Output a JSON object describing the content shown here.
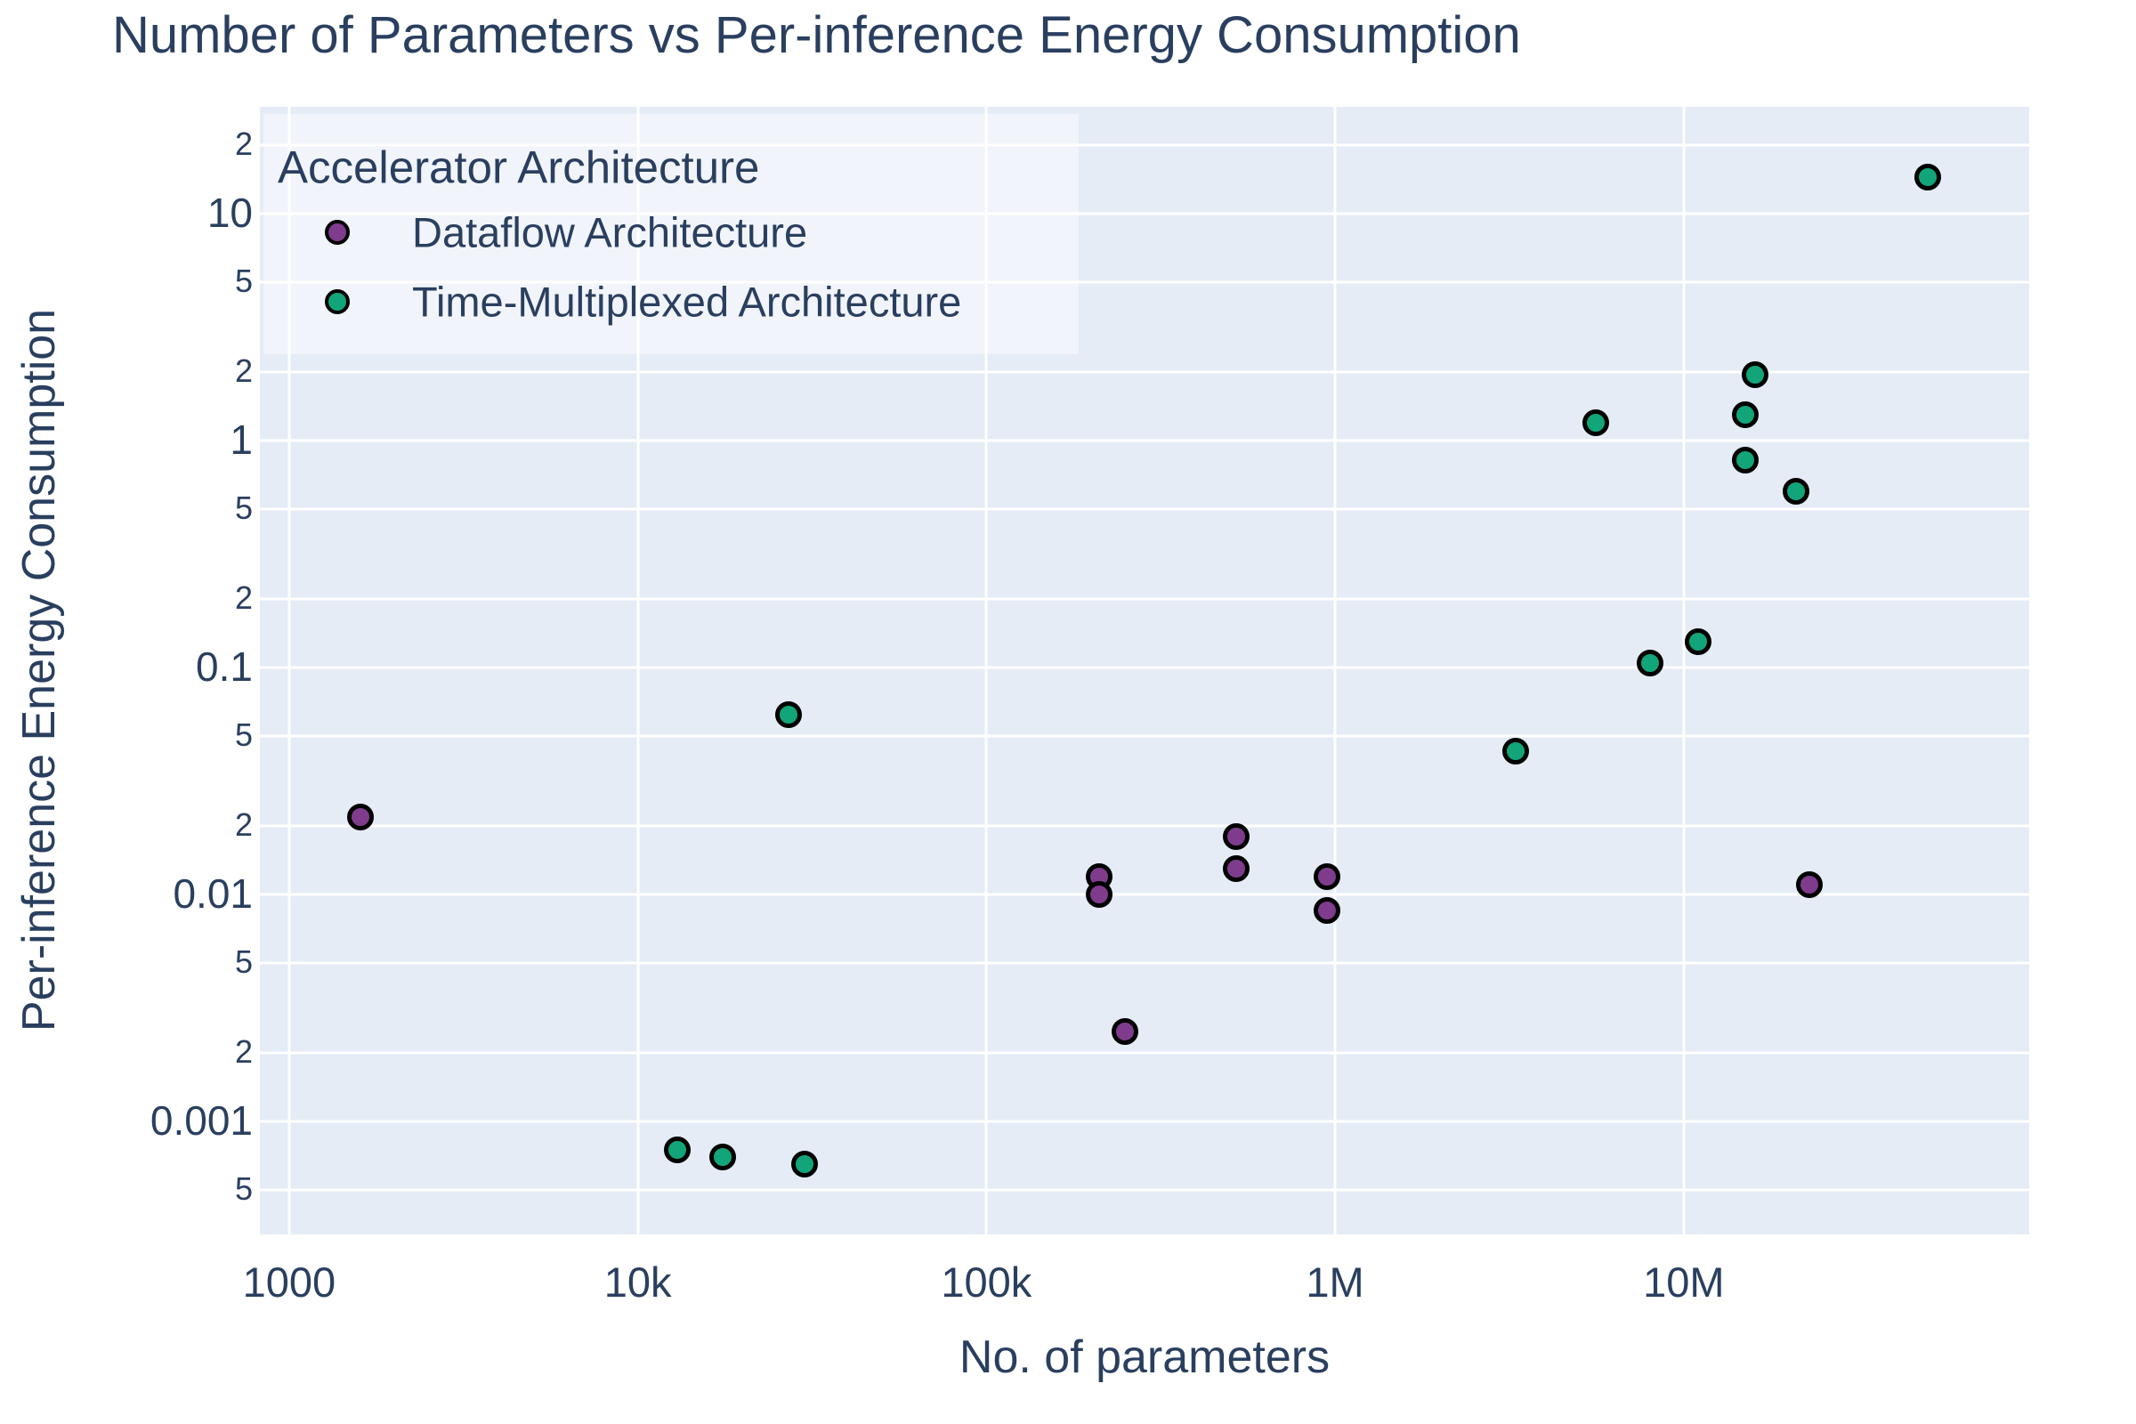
{
  "colors": {
    "background": "#ffffff",
    "plot_background": "#e5ecf6",
    "gridline": "#ffffff",
    "text": "#2a3f5f",
    "marker_outline": "#000000",
    "dataflow": "#7F3C8D",
    "time_multiplexed": "#11A579"
  },
  "chart_data": {
    "type": "scatter",
    "title": "Number of Parameters vs Per-inference Energy Consumption",
    "xlabel": "No. of parameters",
    "ylabel": "Per-inference Energy Consumption",
    "x_scale": "log",
    "y_scale": "log",
    "x_range_log10": [
      2.916,
      7.991
    ],
    "y_range_log10": [
      -3.498,
      1.471
    ],
    "grid": true,
    "legend": {
      "title": "Accelerator Architecture",
      "position": "top-left"
    },
    "x_ticks": [
      {
        "value": 1000,
        "label": "1000"
      },
      {
        "value": 10000,
        "label": "10k"
      },
      {
        "value": 100000,
        "label": "100k"
      },
      {
        "value": 1000000,
        "label": "1M"
      },
      {
        "value": 10000000,
        "label": "10M"
      }
    ],
    "y_ticks": [
      {
        "value": 20,
        "label": "2",
        "minor": true
      },
      {
        "value": 10,
        "label": "10",
        "minor": false
      },
      {
        "value": 5,
        "label": "5",
        "minor": true
      },
      {
        "value": 2,
        "label": "2",
        "minor": true
      },
      {
        "value": 1,
        "label": "1",
        "minor": false
      },
      {
        "value": 0.5,
        "label": "5",
        "minor": true
      },
      {
        "value": 0.2,
        "label": "2",
        "minor": true
      },
      {
        "value": 0.1,
        "label": "0.1",
        "minor": false
      },
      {
        "value": 0.05,
        "label": "5",
        "minor": true
      },
      {
        "value": 0.02,
        "label": "2",
        "minor": true
      },
      {
        "value": 0.01,
        "label": "0.01",
        "minor": false
      },
      {
        "value": 0.005,
        "label": "5",
        "minor": true
      },
      {
        "value": 0.002,
        "label": "2",
        "minor": true
      },
      {
        "value": 0.001,
        "label": "0.001",
        "minor": false
      },
      {
        "value": 0.0005,
        "label": "5",
        "minor": true
      }
    ],
    "series": [
      {
        "name": "Dataflow Architecture",
        "color": "#7F3C8D",
        "points": [
          [
            1600,
            0.022
          ],
          [
            210000,
            0.012
          ],
          [
            210000,
            0.01
          ],
          [
            250000,
            0.0025
          ],
          [
            520000,
            0.018
          ],
          [
            520000,
            0.013
          ],
          [
            950000,
            0.012
          ],
          [
            950000,
            0.0085
          ],
          [
            23000000,
            0.011
          ]
        ]
      },
      {
        "name": "Time-Multiplexed Architecture",
        "color": "#11A579",
        "points": [
          [
            13000,
            0.00075
          ],
          [
            17500,
            0.0007
          ],
          [
            30000,
            0.00065
          ],
          [
            27000,
            0.062
          ],
          [
            3300000,
            0.043
          ],
          [
            8000000,
            0.105
          ],
          [
            11000000,
            0.13
          ],
          [
            5600000,
            1.2
          ],
          [
            15000000,
            1.3
          ],
          [
            15000000,
            0.82
          ],
          [
            16000000,
            1.95
          ],
          [
            21000000,
            0.6
          ],
          [
            50000000,
            14.5
          ]
        ]
      }
    ]
  }
}
